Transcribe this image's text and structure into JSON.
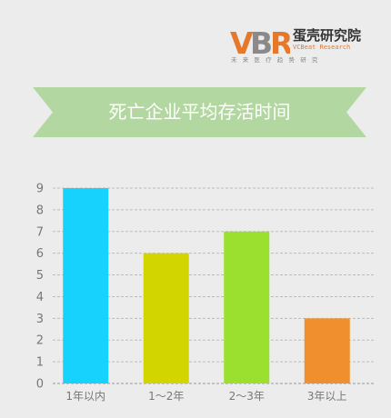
{
  "brand": {
    "logo_text": "VBR",
    "name_cn": "蛋壳研究院",
    "name_en": "VCBeat Research",
    "tagline": "未来医疗趋势研究",
    "colors": {
      "v": "#e5782a",
      "b": "#8a8a8a",
      "r": "#e5782a"
    }
  },
  "banner": {
    "title": "死亡企业平均存活时间",
    "color": "#b3d7a1"
  },
  "chart_data": {
    "type": "bar",
    "title": "",
    "xlabel": "",
    "ylabel": "",
    "categories": [
      "1年以内",
      "1～2年",
      "2～3年",
      "3年以上"
    ],
    "values": [
      9,
      6,
      7,
      3
    ],
    "colors": [
      "#17d2fc",
      "#d3d500",
      "#9be02f",
      "#f08f2d"
    ],
    "ylim": [
      0,
      9
    ],
    "yticks": [
      0,
      1,
      2,
      3,
      4,
      5,
      6,
      7,
      8,
      9
    ],
    "grid": true,
    "legend": "none"
  }
}
